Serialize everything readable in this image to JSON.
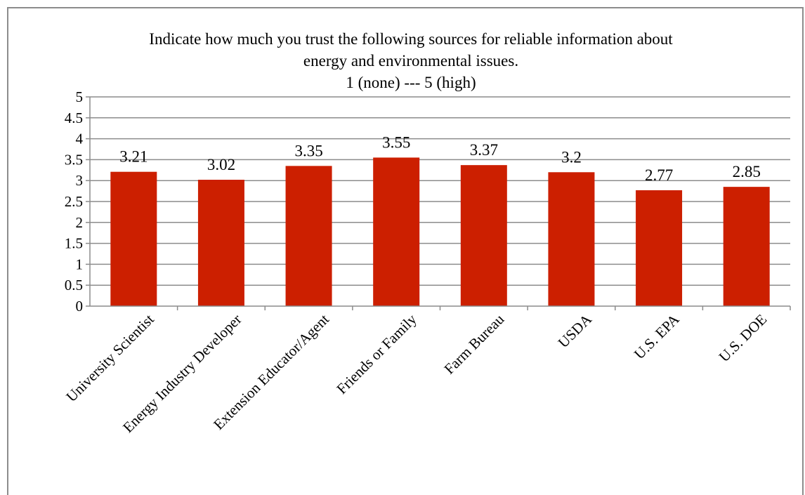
{
  "chart_data": {
    "type": "bar",
    "title_lines": [
      "Indicate how much you trust the following sources for reliable information about",
      "energy and environmental issues.",
      "1 (none) --- 5 (high)"
    ],
    "categories": [
      "University Scientist",
      "Energy Industry Developer",
      "Extension Educator/Agent",
      "Friends or Family",
      "Farm Bureau",
      "USDA",
      "U.S. EPA",
      "U.S. DOE"
    ],
    "values": [
      3.21,
      3.02,
      3.35,
      3.55,
      3.37,
      3.2,
      2.77,
      2.85
    ],
    "value_labels": [
      "3.21",
      "3.02",
      "3.35",
      "3.55",
      "3.37",
      "3.2",
      "2.77",
      "2.85"
    ],
    "ylim": [
      0,
      5
    ],
    "yticks": [
      "0",
      "0.5",
      "1",
      "1.5",
      "2",
      "2.5",
      "3",
      "3.5",
      "4",
      "4.5",
      "5"
    ],
    "bar_color": "#cc1f00",
    "grid": true,
    "legend": "none"
  }
}
